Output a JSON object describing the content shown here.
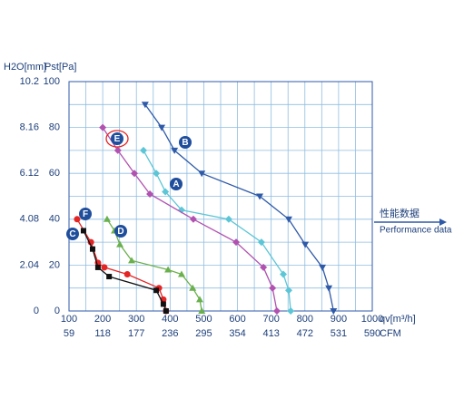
{
  "chart_data": {
    "type": "line",
    "y_label_left": "H2O[mm]",
    "y_label": "Pst[Pa]",
    "x_label": "qv[m³/h]",
    "x2_label": "CFM",
    "annotation_cn": "性能数据",
    "annotation": "Performance data",
    "xlim": [
      100,
      1000
    ],
    "xticks": [
      100,
      200,
      300,
      400,
      500,
      600,
      700,
      800,
      900,
      1000
    ],
    "x2lim": [
      59,
      590
    ],
    "x2ticks": [
      59,
      118,
      177,
      236,
      295,
      354,
      413,
      472,
      531,
      590
    ],
    "ylim": [
      0,
      100
    ],
    "yticks": [
      0,
      20,
      40,
      60,
      80,
      100
    ],
    "y2lim": [
      0,
      10.2
    ],
    "y2ticks": [
      0,
      2.04,
      4.08,
      6.12,
      8.16,
      10.2
    ],
    "xgrid": [
      150,
      250,
      350,
      450,
      550,
      650,
      750,
      850,
      950
    ],
    "ygrid": [
      10,
      30,
      50,
      70,
      90
    ],
    "series": [
      {
        "name": "B",
        "color": "#2f5aa8",
        "marker": "triangle-down",
        "x": [
          326,
          375,
          413,
          494,
          666,
          752,
          801,
          852,
          871,
          885
        ],
        "values": [
          90,
          80,
          70,
          60,
          50,
          40,
          29,
          19,
          10,
          0
        ]
      },
      {
        "name": "A",
        "color": "#5cc6d6",
        "marker": "diamond",
        "x": [
          321,
          359,
          386,
          434,
          574,
          671,
          736,
          752,
          758
        ],
        "values": [
          70,
          60,
          52,
          44,
          40,
          30,
          16,
          9,
          0
        ]
      },
      {
        "name": "E",
        "color": "#b152b0",
        "marker": "diamond",
        "x": [
          200,
          245,
          294,
          340,
          469,
          596,
          677,
          704,
          717
        ],
        "values": [
          80,
          70,
          60,
          51,
          40,
          30,
          19,
          10,
          0
        ]
      },
      {
        "name": "D",
        "color": "#6ab04c",
        "marker": "triangle-up",
        "x": [
          213,
          235,
          251,
          286,
          394,
          434,
          467,
          488,
          494
        ],
        "values": [
          40,
          35,
          29,
          22,
          18,
          16,
          10,
          5,
          0
        ]
      },
      {
        "name": "F",
        "color": "#e52424",
        "marker": "circle",
        "x": [
          124,
          165,
          186,
          205,
          273,
          367,
          380,
          388
        ],
        "values": [
          40,
          30,
          21,
          19,
          16,
          10,
          5,
          0
        ]
      },
      {
        "name": "C",
        "color": "#111111",
        "marker": "square",
        "x": [
          143,
          170,
          186,
          219,
          359,
          380,
          388
        ],
        "values": [
          35,
          27,
          19,
          15,
          9,
          3,
          0
        ]
      }
    ]
  }
}
